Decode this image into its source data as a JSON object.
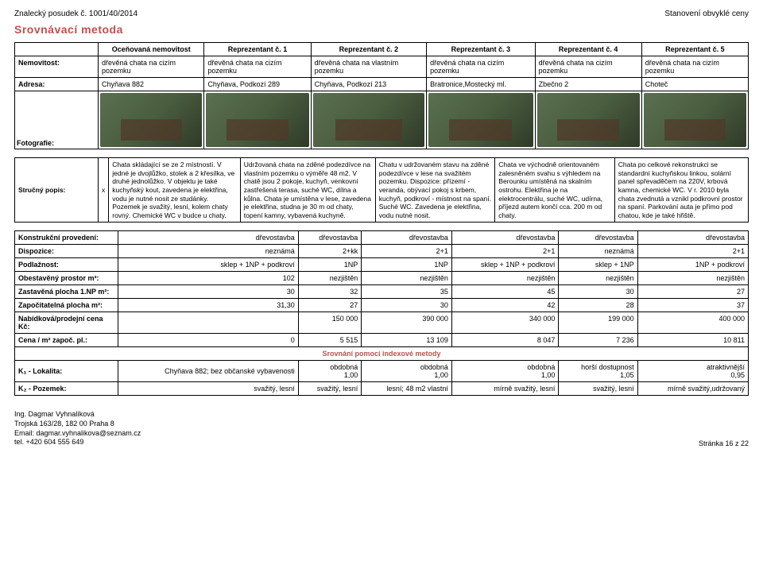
{
  "header": {
    "left": "Znalecký posudek č. 1001/40/2014",
    "right": "Stanovení obvyklé ceny"
  },
  "method_title": "Srovnávací metoda",
  "table1": {
    "headers": [
      "",
      "Oceňovaná nemovitost",
      "Reprezentant č. 1",
      "Reprezentant č. 2",
      "Reprezentant č. 3",
      "Reprezentant č. 4",
      "Reprezentant č. 5"
    ],
    "rows": [
      {
        "label": "Nemovitost:",
        "cells": [
          "dřevěná chata na cizím pozemku",
          "dřevěná chata na cizím pozemku",
          "dřevěná chata na vlastním pozemku",
          "dřevěná chata na cizím pozemku",
          "dřevěná chata na cizím pozemku",
          "dřevěná chata na cizím pozemku"
        ]
      },
      {
        "label": "Adresa:",
        "cells": [
          "Chyňava 882",
          "Chyňava, Podkozí 289",
          "Chyňava, Podkozí 213",
          "Bratronice,Mostecký ml.",
          "Zbečno 2",
          "Choteč"
        ]
      }
    ],
    "photo_label": "Fotografie:"
  },
  "table2": {
    "row": {
      "label": "Stručný popis:",
      "cells": [
        "x",
        "Chata skládající se ze 2 místností. V jedné je dvojlůžko, stolek a 2 křesílka, ve druhé jednolůžko. V objektu je také kuchyňský kout, zavedena je elektřina, vodu je nutné nosit ze studánky. Pozemek je svažitý, lesní, kolem chaty rovný. Chemické WC v budce u chaty.",
        "Udržovaná chata na zděné podezdívce na vlastním pozemku o výměře 48 m2. V chatě jsou 2 pokoje, kuchyň, venkovní zastřešená terasa, suché WC, dílna a kůlna. Chata je umístěna v lese, zavedena je elektřina, studna je 30 m od chaty, topení kamny, vybavená kuchyně.",
        "Chatu v udržovaném stavu na zděné podezdívce v lese na svažitém pozemku. Dispozice: přízemí - veranda, obývací pokoj s krbem, kuchyň, podkroví - místnost na spaní. Suché WC. Zavedena je elektřina, vodu nutné nosit.",
        "Chata ve východně orientovaném zalesněném svahu s výhledem na Berounku umístěná na skalním ostrohu. Elektřina je na elektrocentrálu, suché WC, udírna, příjezd autem končí cca. 200 m od chaty.",
        "Chata po celkové rekonstrukci se standardní kuchyňskou linkou, solární panel spřevaděčem na 220V, krbová kamna, chemické WC. V r. 2010 byla chata zvednutá a vznikl podkrovní prostor na spaní. Parkování auta je přímo pod chatou, kde je také hřiště."
      ]
    }
  },
  "table3": {
    "rows": [
      {
        "label": "Konstrukční provedení:",
        "cells": [
          "dřevostavba",
          "dřevostavba",
          "dřevostavba",
          "dřevostavba",
          "dřevostavba",
          "dřevostavba"
        ]
      },
      {
        "label": "Dispozice:",
        "cells": [
          "neznámá",
          "2+kk",
          "2+1",
          "2+1",
          "neznámá",
          "2+1"
        ]
      },
      {
        "label": "Podlažnost:",
        "cells": [
          "sklep + 1NP + podkroví",
          "1NP",
          "1NP",
          "sklep + 1NP + podkroví",
          "sklep + 1NP",
          "1NP + podkroví"
        ]
      },
      {
        "label": "Obestavěný prostor m³:",
        "cells": [
          "102",
          "nezjištěn",
          "nezjištěn",
          "nezjištěn",
          "nezjištěn",
          "nezjištěn"
        ]
      },
      {
        "label": "Zastavěná plocha 1.NP m²:",
        "cells": [
          "30",
          "32",
          "35",
          "45",
          "30",
          "27"
        ]
      },
      {
        "label": "Započitatelná plocha m²:",
        "cells": [
          "31,30",
          "27",
          "30",
          "42",
          "28",
          "37"
        ]
      },
      {
        "label": "Nabídková/prodejní cena Kč:",
        "cells": [
          "",
          "150 000",
          "390 000",
          "340 000",
          "199 000",
          "400 000"
        ]
      },
      {
        "label": "Cena / m² započ. pl.:",
        "cells": [
          "0",
          "5 515",
          "13 109",
          "8 047",
          "7 236",
          "10 811"
        ]
      }
    ],
    "comparison_title": "Srovnání pomocí indexové metody",
    "k_rows": [
      {
        "label": "K₁ - Lokalita:",
        "text": "Chyňava 882; bez občanské vybavenosti",
        "cells": [
          {
            "t": "obdobná",
            "v": "1,00"
          },
          {
            "t": "obdobná",
            "v": "1,00"
          },
          {
            "t": "obdobná",
            "v": "1,00"
          },
          {
            "t": "horší dostupnost",
            "v": "1,05"
          },
          {
            "t": "atraktivnější",
            "v": "0,95"
          }
        ]
      },
      {
        "label": "K₂ - Pozemek:",
        "text": "svažitý, lesní",
        "cells": [
          "svažitý, lesní",
          "lesní; 48 m2 vlastní",
          "mírně svažitý, lesní",
          "svažitý, lesní",
          "mírně svažitý,udržovaný"
        ]
      }
    ]
  },
  "footer": {
    "name": "Ing. Dagmar Vyhnalíková",
    "addr": "Trojská 163/28, 182 00 Praha 8",
    "email": "Email: dagmar.vyhnalikova@seznam.cz",
    "tel": "tel. +420 604 555 649",
    "page": "Stránka 16 z 22"
  }
}
